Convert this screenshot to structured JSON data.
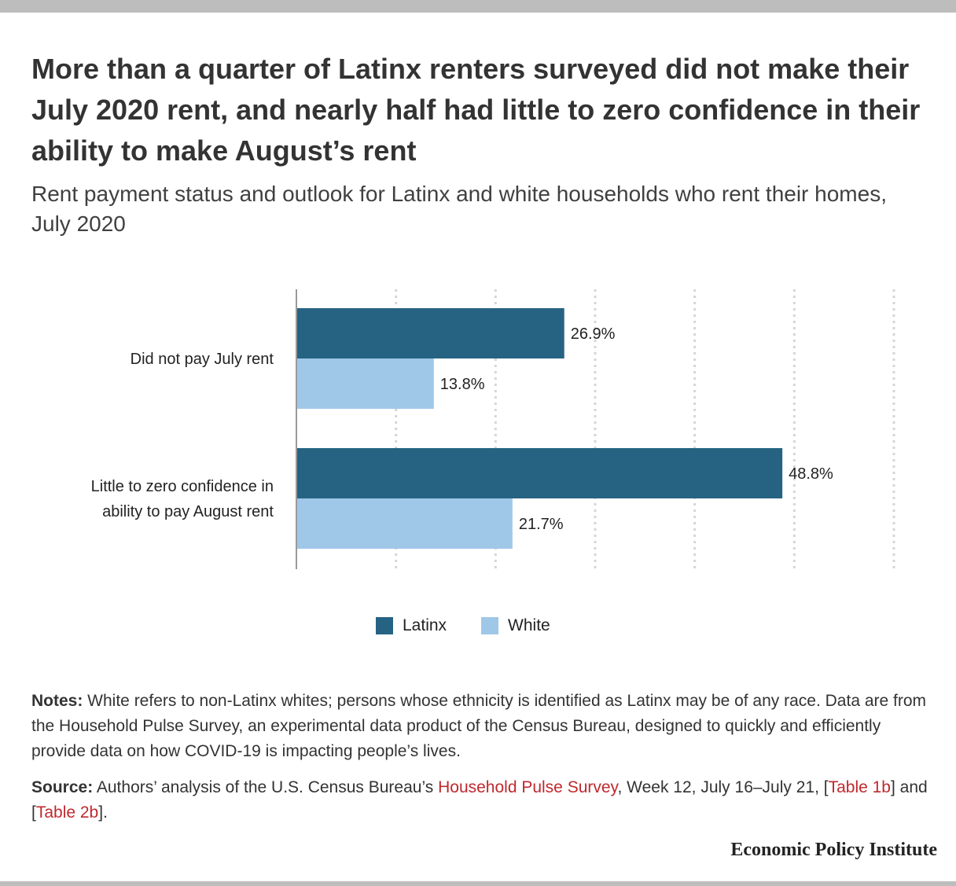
{
  "title": "More than a quarter of Latinx renters surveyed did not make their July 2020 rent, and nearly half had little to zero confidence in their ability to make August’s rent",
  "subtitle": "Rent payment status and outlook for Latinx and white households who rent their homes, July 2020",
  "colors": {
    "latinx": "#266383",
    "white": "#9fc7e8",
    "link": "#c0282d",
    "grid": "#d6d6d6",
    "axis": "#9a9a9a"
  },
  "chart_data": {
    "type": "bar",
    "orientation": "horizontal",
    "categories": [
      "Did not pay July rent",
      "Little to zero confidence in ability to pay August rent"
    ],
    "category_lines": [
      [
        "Did not pay July rent"
      ],
      [
        "Little to zero confidence in",
        "ability to pay August rent"
      ]
    ],
    "series": [
      {
        "name": "Latinx",
        "values": [
          26.9,
          48.8
        ],
        "labels": [
          "26.9%",
          "48.8%"
        ]
      },
      {
        "name": "White",
        "values": [
          13.8,
          21.7
        ],
        "labels": [
          "13.8%",
          "21.7%"
        ]
      }
    ],
    "xlim": [
      0,
      60
    ],
    "grid": true,
    "legend": "bottom"
  },
  "legend": {
    "latinx": "Latinx",
    "white": "White"
  },
  "notes": {
    "label": "Notes:",
    "text": " White refers to non-Latinx whites; persons whose ethnicity is identified as Latinx may be of any race. Data are from the Household Pulse Survey, an experimental data product of the Census Bureau, designed to quickly and efficiently provide data on how COVID-19 is impacting people’s lives."
  },
  "source": {
    "label": "Source:",
    "text1": " Authors’ analysis of the U.S. Census Bureau’s ",
    "link1": "Household Pulse Survey",
    "text2": ", Week 12, July 16–July 21, [",
    "link2": "Table 1b",
    "text3": "] and [",
    "link3": "Table 2b",
    "text4": "]."
  },
  "brand": "Economic Policy Institute"
}
